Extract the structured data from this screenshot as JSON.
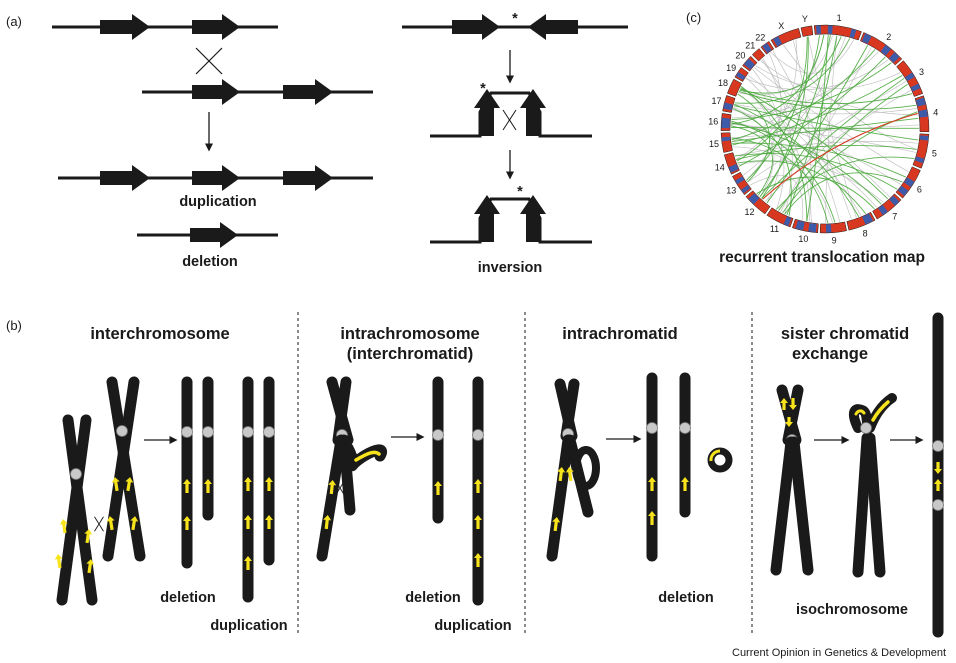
{
  "panel_a": {
    "label": "(a)",
    "duplication": "duplication",
    "deletion": "deletion",
    "inversion": "inversion",
    "asterisk": "*"
  },
  "panel_b": {
    "label": "(b)",
    "interchromosome": {
      "title": "interchromosome",
      "deletion": "deletion",
      "duplication": "duplication"
    },
    "intrachromosome": {
      "title_line1": "intrachromosome",
      "title_line2": "(interchromatid)",
      "deletion": "deletion",
      "duplication": "duplication"
    },
    "intrachromatid": {
      "title": "intrachromatid",
      "deletion": "deletion"
    },
    "sister": {
      "title_line1": "sister chromatid",
      "title_line2": "exchange",
      "isochromosome": "isochromosome"
    }
  },
  "panel_c": {
    "label": "(c)",
    "caption": "recurrent translocation map",
    "chromosomes": [
      "1",
      "2",
      "3",
      "4",
      "5",
      "6",
      "7",
      "8",
      "9",
      "10",
      "11",
      "12",
      "13",
      "14",
      "15",
      "16",
      "17",
      "18",
      "19",
      "20",
      "21",
      "22",
      "X",
      "Y"
    ]
  },
  "credit": "Current Opinion in Genetics & Development",
  "colors": {
    "band_red": "#d8381f",
    "band_blue": "#3d5ba8",
    "link_green": "#4aa83c",
    "link_gray": "#b8b8b8",
    "link_red": "#d8381f",
    "arrow_yellow": "#f7e31c",
    "centromere": "#c8c8c8"
  }
}
